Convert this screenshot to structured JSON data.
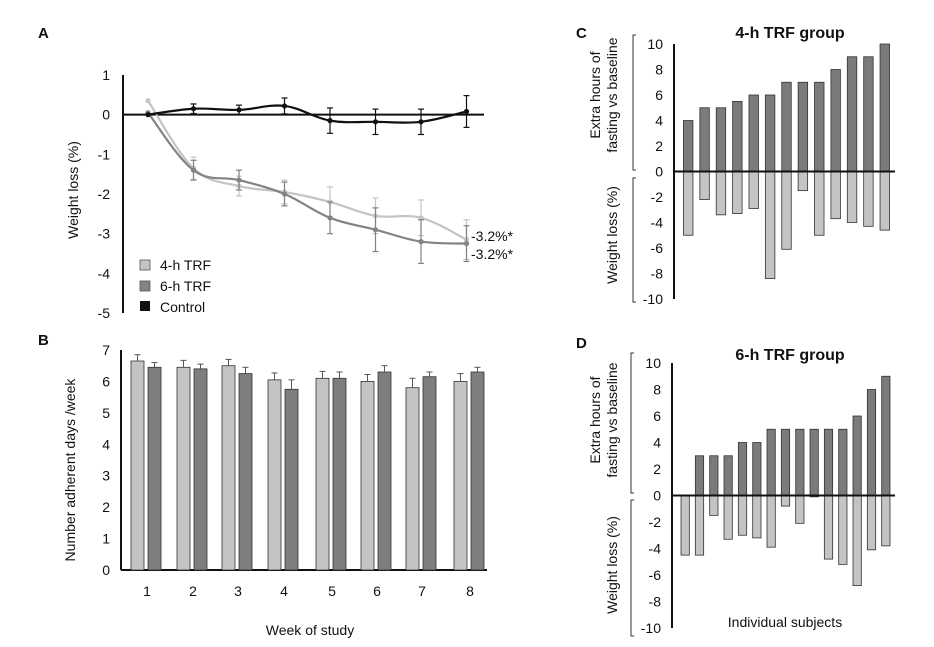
{
  "chart_data": [
    {
      "panel": "A",
      "type": "line",
      "title": "",
      "xlabel": "",
      "ylabel": "Weight loss (%)",
      "ylim": [
        -5,
        1
      ],
      "yticks": [
        "1",
        "0",
        "-1",
        "-2",
        "-3",
        "-4",
        "-5"
      ],
      "x": [
        0,
        1,
        2,
        3,
        4,
        5,
        6,
        7,
        8
      ],
      "grid": false,
      "legend_position": "bottom-left",
      "series": [
        {
          "name": "4-h TRF",
          "color": "#c4c4c4",
          "values": [
            0.35,
            -1.35,
            -1.8,
            -1.95,
            -2.2,
            -2.55,
            -2.6,
            -3.15
          ],
          "x": [
            0,
            1,
            2,
            3,
            4,
            5,
            6,
            7
          ],
          "error": [
            0,
            0.28,
            0.25,
            0.3,
            0.38,
            0.45,
            0.45,
            0.5
          ]
        },
        {
          "name": "6-h TRF",
          "color": "#838383",
          "values": [
            0.05,
            -1.4,
            -1.65,
            -2.0,
            -2.6,
            -2.9,
            -3.2,
            -3.25
          ],
          "x": [
            0,
            1,
            2,
            3,
            4,
            5,
            6,
            7
          ],
          "error": [
            0,
            0.25,
            0.25,
            0.3,
            0.4,
            0.55,
            0.55,
            0.45
          ]
        },
        {
          "name": "Control",
          "color": "#111111",
          "values": [
            0,
            0.15,
            0.12,
            0.22,
            -0.15,
            -0.18,
            -0.18,
            0.08
          ],
          "x": [
            0,
            1,
            2,
            3,
            4,
            5,
            6,
            7
          ],
          "error": [
            0,
            0.12,
            0.12,
            0.2,
            0.32,
            0.32,
            0.32,
            0.4
          ]
        }
      ],
      "annotations": [
        "-3.2%*",
        "-3.2%*"
      ]
    },
    {
      "panel": "B",
      "type": "bar",
      "title": "",
      "xlabel": "Week of study",
      "ylabel": "Number adherent days /week",
      "ylim": [
        0,
        7
      ],
      "yticks": [
        "7",
        "6",
        "5",
        "4",
        "3",
        "2",
        "1",
        "0"
      ],
      "categories": [
        "1",
        "2",
        "3",
        "4",
        "5",
        "6",
        "7",
        "8"
      ],
      "grid": false,
      "series": [
        {
          "name": "4-h TRF",
          "color": "#c4c4c4",
          "values": [
            6.65,
            6.45,
            6.5,
            6.05,
            6.1,
            6.0,
            5.8,
            6.0
          ],
          "error": [
            0.2,
            0.22,
            0.2,
            0.22,
            0.22,
            0.22,
            0.3,
            0.25
          ]
        },
        {
          "name": "6-h TRF",
          "color": "#7e7e7e",
          "values": [
            6.45,
            6.4,
            6.25,
            5.75,
            6.1,
            6.3,
            6.15,
            6.3
          ],
          "error": [
            0.15,
            0.15,
            0.2,
            0.3,
            0.2,
            0.2,
            0.15,
            0.15
          ]
        }
      ]
    },
    {
      "panel": "C",
      "type": "bar",
      "title": "4-h TRF group",
      "xlabel": "",
      "ylabel_top": "Extra hours of fasting vs baseline",
      "ylabel_bottom": "Weight loss (%)",
      "ylim": [
        -10,
        10
      ],
      "yticks": [
        "10",
        "8",
        "6",
        "4",
        "2",
        "0",
        "-2",
        "-4",
        "-6",
        "-8",
        "-10"
      ],
      "series": [
        {
          "name": "Extra hours of fasting vs baseline",
          "color": "#7b7b7b",
          "values": [
            4,
            5,
            5,
            5.5,
            6,
            6,
            7,
            7,
            7,
            8,
            9,
            9,
            10
          ]
        },
        {
          "name": "Weight loss (%)",
          "color": "#c4c4c4",
          "values": [
            -5,
            -2.2,
            -3.4,
            -3.3,
            -2.9,
            -8.4,
            -6.1,
            -1.5,
            -5,
            -3.7,
            -4,
            -4.3,
            -4.6
          ]
        }
      ]
    },
    {
      "panel": "D",
      "type": "bar",
      "title": "6-h TRF group",
      "xlabel": "Individual subjects",
      "ylabel_top": "Extra hours of fasting vs baseline",
      "ylabel_bottom": "Weight loss (%)",
      "ylim": [
        -10,
        10
      ],
      "yticks": [
        "10",
        "8",
        "6",
        "4",
        "2",
        "0",
        "-2",
        "-4",
        "-6",
        "-8",
        "-10"
      ],
      "series": [
        {
          "name": "Extra hours of fasting vs baseline",
          "color": "#7b7b7b",
          "values": [
            0,
            3,
            3,
            3,
            4,
            4,
            5,
            5,
            5,
            5,
            5,
            5,
            6,
            8,
            9
          ]
        },
        {
          "name": "Weight loss (%)",
          "color": "#c4c4c4",
          "values": [
            -4.5,
            -4.5,
            -1.5,
            -3.3,
            -3,
            -3.2,
            -3.9,
            -0.8,
            -2.1,
            -0.1,
            -4.8,
            -5.2,
            -6.8,
            -4.1,
            -3.8
          ]
        }
      ]
    }
  ],
  "panels": {
    "a": {
      "letter": "A",
      "ylabel": "Weight loss (%)",
      "annotation_top": "-3.2%*",
      "annotation_bottom": "-3.2%*",
      "legend": [
        "4-h TRF",
        "6-h TRF",
        "Control"
      ]
    },
    "b": {
      "letter": "B",
      "ylabel": "Number adherent days /week",
      "xlabel": "Week of study"
    },
    "c": {
      "letter": "C",
      "title": "4-h TRF group",
      "ylabel_top_1": "Extra hours of",
      "ylabel_top_2": "fasting vs baseline",
      "ylabel_bottom": "Weight loss (%)"
    },
    "d": {
      "letter": "D",
      "title": "6-h TRF group",
      "ylabel_top_1": "Extra hours of",
      "ylabel_top_2": "fasting vs baseline",
      "ylabel_bottom": "Weight loss (%)",
      "xlabel": "Individual subjects"
    }
  }
}
